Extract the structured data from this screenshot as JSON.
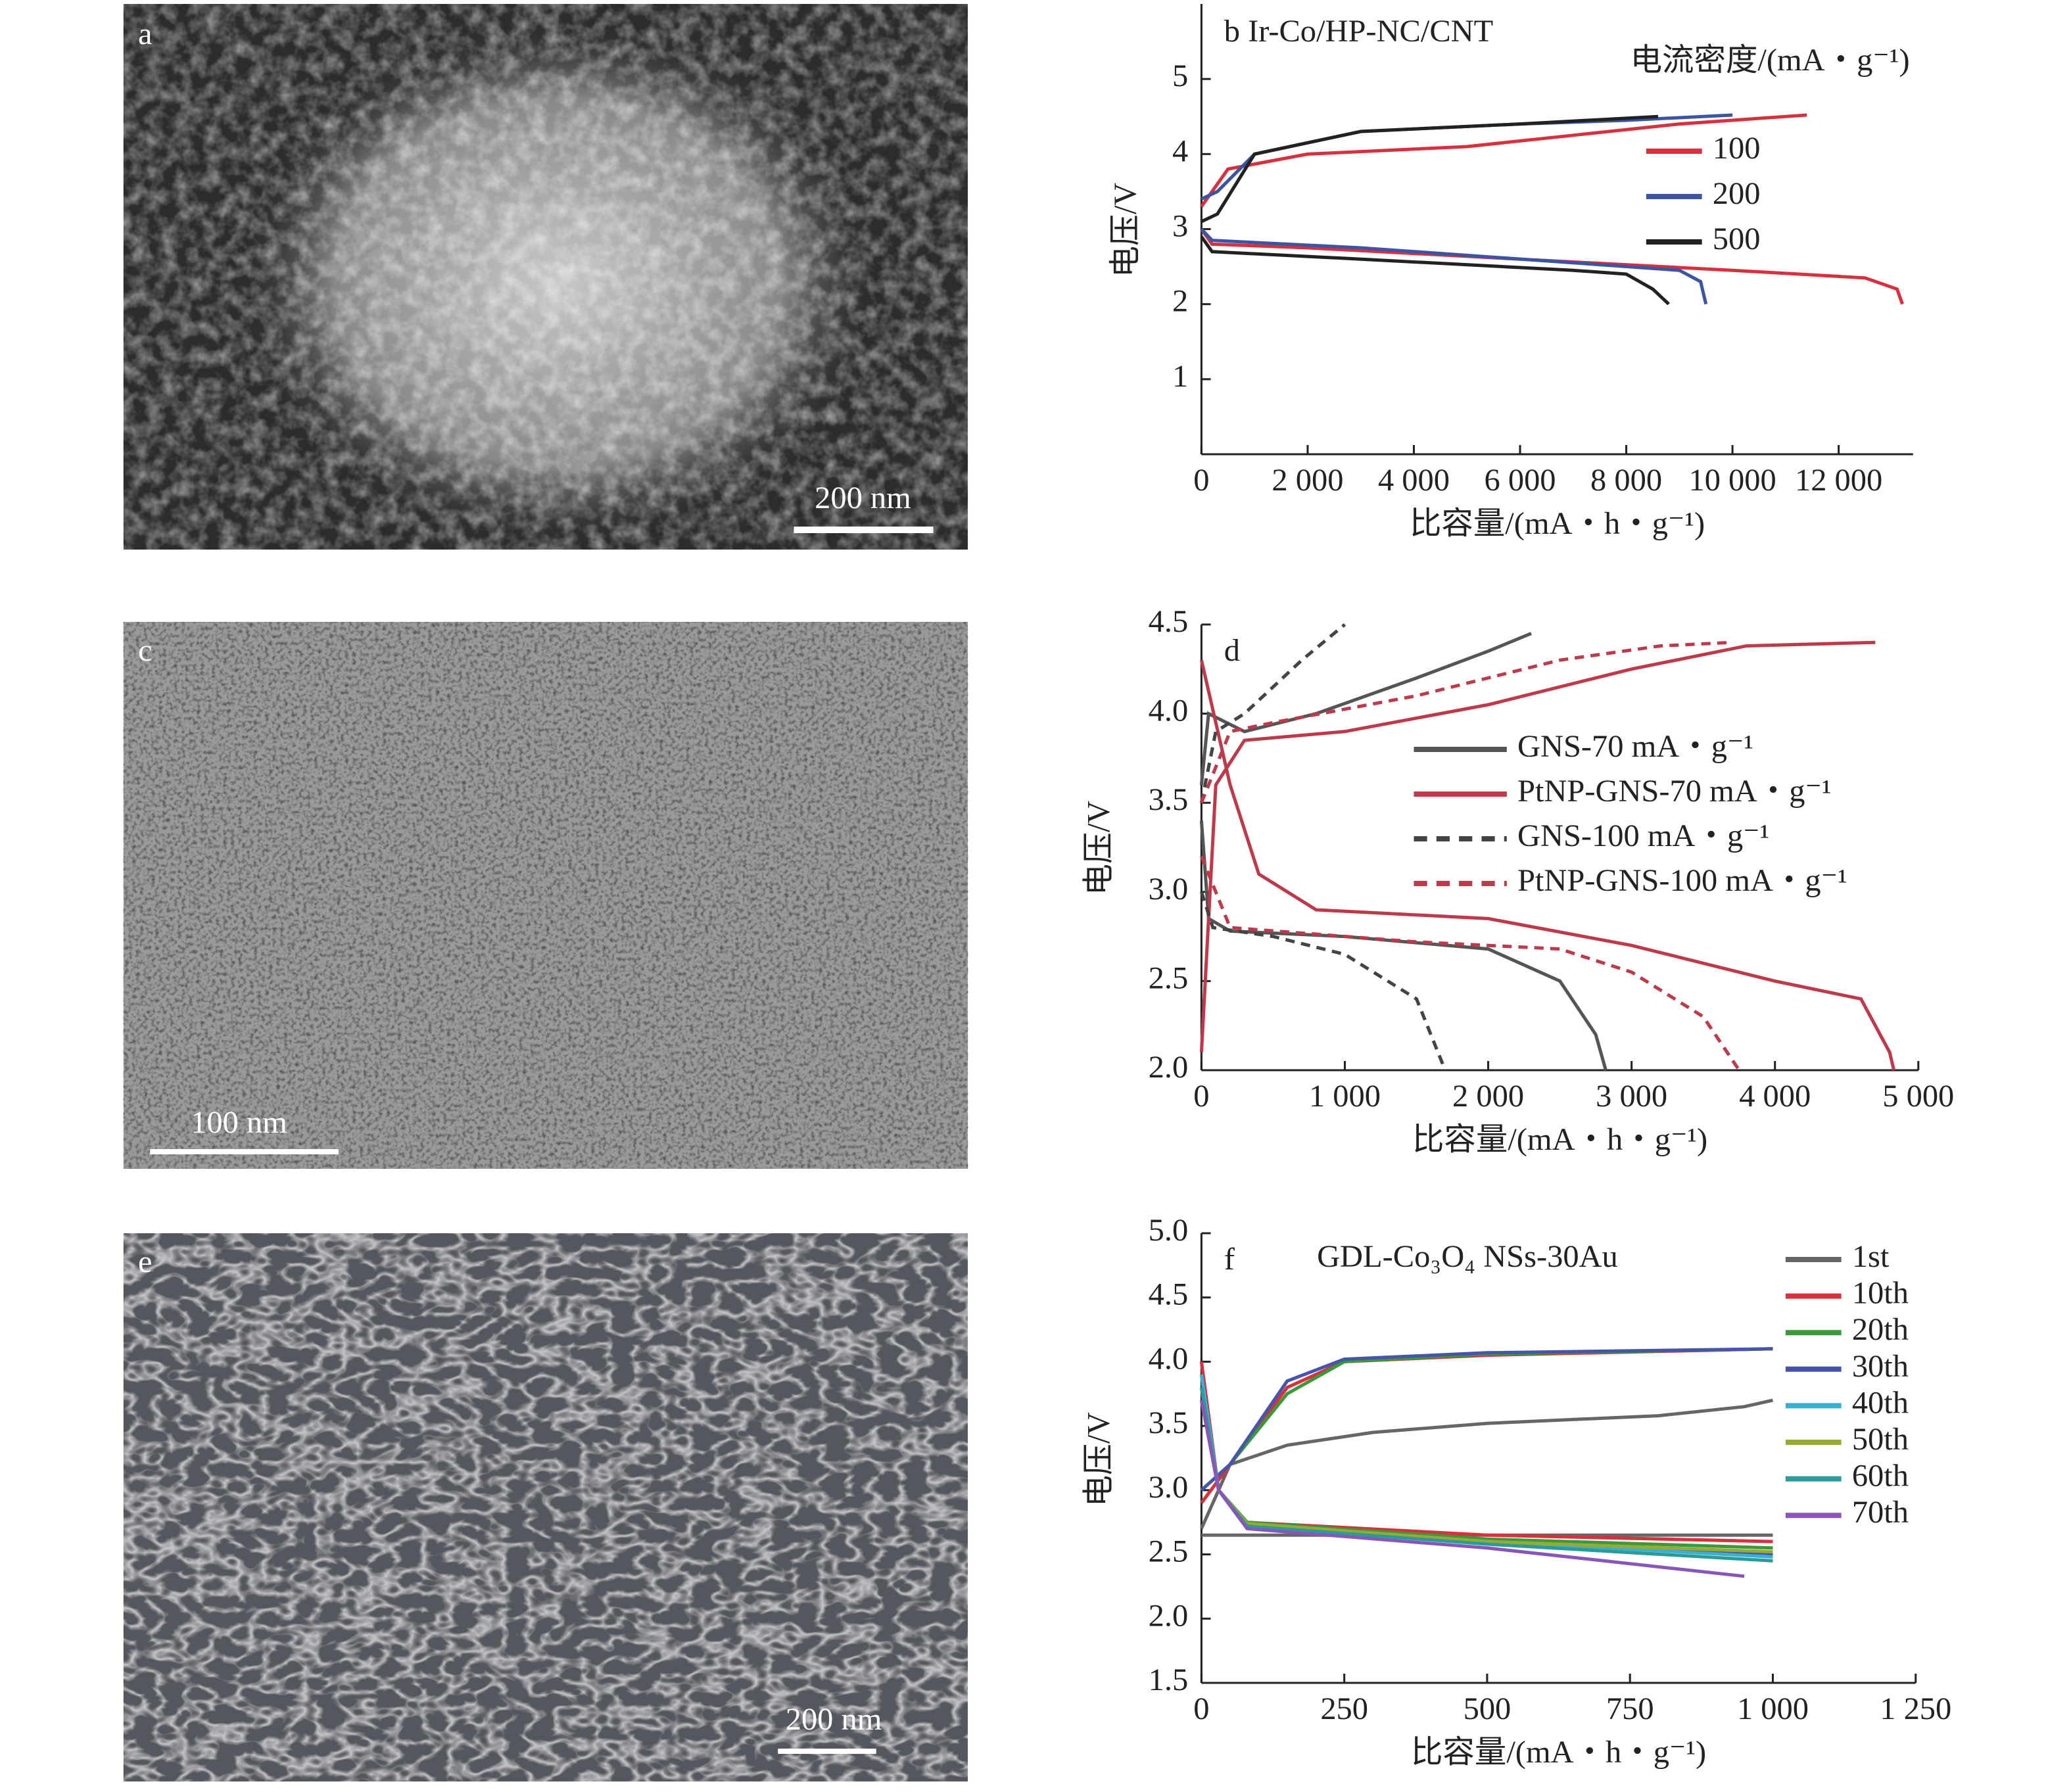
{
  "images": [
    {
      "panel": "a",
      "scale_bar": "200 nm"
    },
    {
      "panel": "c",
      "scale_bar": "100 nm"
    },
    {
      "panel": "e",
      "scale_bar": "200 nm"
    }
  ],
  "chart_data": [
    {
      "type": "line",
      "panel": "b",
      "title": "Ir-Co/HP-NC/CNT",
      "x_label": "比容量/(mA・h・g⁻¹)",
      "y_label": "电压/V",
      "legend_title": "电流密度/(mA・g⁻¹)",
      "xlim": [
        0,
        13400
      ],
      "ylim": [
        0,
        6
      ],
      "xticks": [
        0,
        {
          "value": 2000,
          "label": "2 000"
        },
        {
          "value": 4000,
          "label": "4 000"
        },
        {
          "value": 6000,
          "label": "6 000"
        },
        {
          "value": 8000,
          "label": "8 000"
        },
        {
          "value": 10000,
          "label": "10 000"
        },
        {
          "value": 12000,
          "label": "12 000"
        }
      ],
      "yticks": [
        1,
        2,
        3,
        4,
        5
      ],
      "series": [
        {
          "name": "100",
          "color": "#d9303e",
          "dash": false,
          "x": [
            0,
            200,
            2000,
            6000,
            10000,
            12500,
            13100,
            13200,
            null,
            0,
            500,
            2000,
            5000,
            7000,
            9000,
            11000,
            11400
          ],
          "values": [
            3.0,
            2.8,
            2.75,
            2.6,
            2.45,
            2.35,
            2.2,
            2.0,
            null,
            3.3,
            3.8,
            4.0,
            4.1,
            4.25,
            4.4,
            4.5,
            4.52
          ]
        },
        {
          "name": "200",
          "color": "#3a55a4",
          "dash": false,
          "x": [
            0,
            200,
            3000,
            7000,
            9000,
            9400,
            9500,
            null,
            0,
            300,
            1000,
            3000,
            6000,
            8000,
            10000
          ],
          "values": [
            3.0,
            2.85,
            2.75,
            2.55,
            2.45,
            2.3,
            2.0,
            null,
            3.4,
            3.5,
            4.0,
            4.3,
            4.4,
            4.45,
            4.52
          ]
        },
        {
          "name": "500",
          "color": "#222222",
          "dash": false,
          "x": [
            0,
            200,
            3000,
            7000,
            8000,
            8500,
            8800,
            null,
            0,
            300,
            1000,
            3000,
            6000,
            8600
          ],
          "values": [
            2.9,
            2.7,
            2.6,
            2.45,
            2.4,
            2.2,
            2.0,
            null,
            3.1,
            3.2,
            4.0,
            4.3,
            4.4,
            4.5
          ]
        }
      ]
    },
    {
      "type": "line",
      "panel": "d",
      "x_label": "比容量/(mA・h・g⁻¹)",
      "y_label": "电压/V",
      "xlim": [
        0,
        5000
      ],
      "ylim": [
        2,
        4.5
      ],
      "xticks": [
        0,
        {
          "value": 1000,
          "label": "1 000"
        },
        {
          "value": 2000,
          "label": "2 000"
        },
        {
          "value": 3000,
          "label": "3 000"
        },
        {
          "value": 4000,
          "label": "4 000"
        },
        {
          "value": 5000,
          "label": "5 000"
        }
      ],
      "yticks": [
        {
          "value": 2,
          "label": "2.0"
        },
        2.5,
        {
          "value": 3,
          "label": "3.0"
        },
        3.5,
        {
          "value": 4,
          "label": "4.0"
        },
        4.5
      ],
      "series": [
        {
          "name": "GNS-70 mA・g⁻¹",
          "color": "#555555",
          "dash": false,
          "x": [
            0,
            50,
            200,
            1000,
            2000,
            2500,
            2750,
            2820,
            null,
            0,
            50,
            300,
            800,
            1500,
            2000,
            2300
          ],
          "values": [
            3.4,
            2.85,
            2.78,
            2.75,
            2.68,
            2.5,
            2.2,
            2.0,
            null,
            3.6,
            4.0,
            3.9,
            4.0,
            4.2,
            4.35,
            4.45
          ]
        },
        {
          "name": "PtNP-GNS-70 mA・g⁻¹",
          "color": "#c0394a",
          "dash": false,
          "x": [
            0,
            200,
            400,
            800,
            2000,
            3000,
            4000,
            4600,
            4800,
            4830,
            null,
            0,
            100,
            300,
            1000,
            2000,
            3000,
            3800,
            4700
          ],
          "values": [
            4.3,
            3.6,
            3.1,
            2.9,
            2.85,
            2.7,
            2.5,
            2.4,
            2.1,
            2.0,
            null,
            2.1,
            3.6,
            3.85,
            3.9,
            4.05,
            4.25,
            4.38,
            4.4
          ]
        },
        {
          "name": "GNS-100 mA・g⁻¹",
          "color": "#444444",
          "dash": true,
          "x": [
            0,
            80,
            500,
            1000,
            1500,
            1700,
            null,
            0,
            100,
            300,
            700,
            1000
          ],
          "values": [
            3.0,
            2.8,
            2.75,
            2.65,
            2.4,
            2.0,
            null,
            3.5,
            3.9,
            4.0,
            4.3,
            4.5
          ]
        },
        {
          "name": "PtNP-GNS-100 mA・g⁻¹",
          "color": "#c0394a",
          "dash": true,
          "x": [
            0,
            200,
            1500,
            2500,
            3000,
            3500,
            3750,
            null,
            0,
            200,
            500,
            1500,
            2500,
            3200,
            3700
          ],
          "values": [
            3.2,
            2.8,
            2.72,
            2.68,
            2.55,
            2.3,
            2.0,
            null,
            3.5,
            3.9,
            3.95,
            4.1,
            4.3,
            4.38,
            4.4
          ]
        }
      ]
    },
    {
      "type": "line",
      "panel": "f",
      "title": "GDL-Co₃O₄ NSs-30Au",
      "x_label": "比容量/(mA・h・g⁻¹)",
      "y_label": "电压/V",
      "xlim": [
        0,
        1250
      ],
      "ylim": [
        1.5,
        5
      ],
      "xticks": [
        0,
        250,
        500,
        750,
        {
          "value": 1000,
          "label": "1 000"
        },
        {
          "value": 1250,
          "label": "1 250"
        }
      ],
      "yticks": [
        1.5,
        {
          "value": 2,
          "label": "2.0"
        },
        2.5,
        {
          "value": 3,
          "label": "3.0"
        },
        3.5,
        {
          "value": 4,
          "label": "4.0"
        },
        4.5,
        {
          "value": 5,
          "label": "5.0"
        }
      ],
      "series": [
        {
          "name": "1st",
          "color": "#666666",
          "dash": false,
          "x": [
            0,
            1000,
            null,
            0,
            50,
            150,
            300,
            500,
            800,
            950,
            1000
          ],
          "values": [
            2.65,
            2.65,
            null,
            2.7,
            3.2,
            3.35,
            3.45,
            3.52,
            3.58,
            3.65,
            3.7
          ]
        },
        {
          "name": "10th",
          "color": "#d9303e",
          "dash": false,
          "x": [
            0,
            30,
            80,
            500,
            1000,
            null,
            0,
            50,
            150,
            250,
            500,
            1000
          ],
          "values": [
            4.0,
            3.0,
            2.75,
            2.65,
            2.6,
            null,
            2.9,
            3.2,
            3.8,
            4.0,
            4.05,
            4.1
          ]
        },
        {
          "name": "20th",
          "color": "#3a9a3a",
          "dash": false,
          "x": [
            0,
            30,
            80,
            500,
            1000,
            null,
            0,
            50,
            150,
            250,
            500,
            1000
          ],
          "values": [
            3.9,
            3.0,
            2.75,
            2.62,
            2.55,
            null,
            3.0,
            3.2,
            3.75,
            4.0,
            4.06,
            4.1
          ]
        },
        {
          "name": "30th",
          "color": "#4455aa",
          "dash": false,
          "x": [
            0,
            30,
            80,
            500,
            1000,
            null,
            0,
            50,
            150,
            250,
            500,
            1000
          ],
          "values": [
            3.9,
            3.0,
            2.74,
            2.6,
            2.5,
            null,
            3.0,
            3.2,
            3.85,
            4.02,
            4.07,
            4.1
          ]
        },
        {
          "name": "40th",
          "color": "#3ab0d0",
          "dash": false,
          "x": [
            0,
            30,
            80,
            500,
            1000
          ],
          "values": [
            3.9,
            3.0,
            2.73,
            2.6,
            2.48
          ]
        },
        {
          "name": "50th",
          "color": "#99aa33",
          "dash": false,
          "x": [
            0,
            30,
            80,
            500,
            1000
          ],
          "values": [
            3.8,
            3.0,
            2.74,
            2.6,
            2.52
          ]
        },
        {
          "name": "60th",
          "color": "#2a9a9a",
          "dash": false,
          "x": [
            0,
            30,
            80,
            500,
            1000
          ],
          "values": [
            3.8,
            3.0,
            2.72,
            2.58,
            2.45
          ]
        },
        {
          "name": "70th",
          "color": "#8855bb",
          "dash": false,
          "x": [
            0,
            30,
            80,
            500,
            950
          ],
          "values": [
            3.7,
            3.0,
            2.7,
            2.55,
            2.33
          ]
        }
      ]
    }
  ]
}
